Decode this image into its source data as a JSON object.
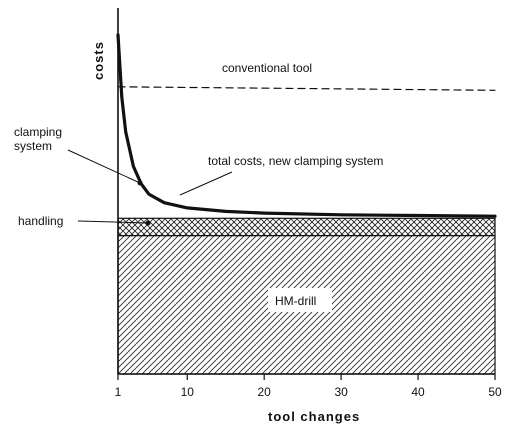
{
  "chart_data": {
    "type": "area",
    "xlabel": "tool changes",
    "ylabel": "costs",
    "x_ticks": [
      1,
      10,
      20,
      30,
      40,
      50
    ],
    "xlim": [
      1,
      50
    ],
    "ylim": [
      0,
      100
    ],
    "layers": [
      {
        "name": "HM-drill",
        "y_from": 0,
        "y_to": 40,
        "pattern": "hatch"
      },
      {
        "name": "handling",
        "y_from": 40,
        "y_to": 45,
        "pattern": "cross-hatch"
      }
    ],
    "series": [
      {
        "name": "conventional tool",
        "style": "dashed",
        "x": [
          1,
          50
        ],
        "y": [
          83,
          82
        ]
      },
      {
        "name": "total costs, new clamping system",
        "style": "solid-thick",
        "x": [
          1,
          1.5,
          2,
          3,
          4,
          5,
          7,
          10,
          15,
          20,
          30,
          40,
          50
        ],
        "y": [
          98,
          80,
          70,
          60,
          55,
          52,
          49.5,
          48,
          47,
          46.5,
          46,
          45.8,
          45.6
        ]
      }
    ],
    "annotations": [
      {
        "text": "clamping system",
        "line1": "clamping",
        "line2": "system"
      },
      {
        "text": "handling"
      },
      {
        "text": "conventional tool"
      },
      {
        "text": "total costs, new clamping system"
      },
      {
        "text": "HM-drill"
      }
    ]
  }
}
